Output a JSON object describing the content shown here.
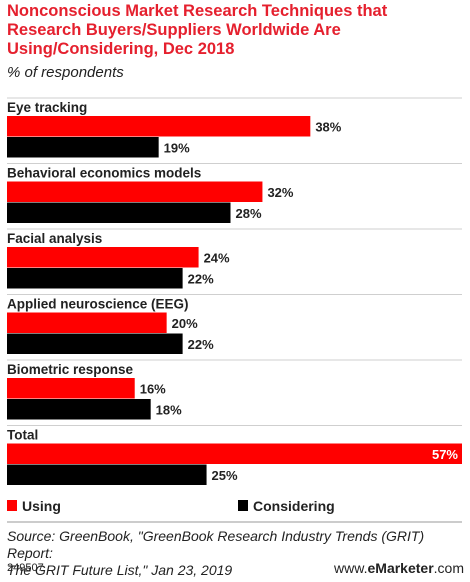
{
  "chart_data": {
    "type": "bar",
    "orientation": "horizontal",
    "title": "Nonconscious Market Research Techniques that Research Buyers/Suppliers Worldwide Are Using/Considering, Dec 2018",
    "subtitle": "% of respondents",
    "categories": [
      "Eye tracking",
      "Behavioral economics models",
      "Facial analysis",
      "Applied neuroscience (EEG)",
      "Biometric response",
      "Total"
    ],
    "series": [
      {
        "name": "Using",
        "color": "#ff0000",
        "values": [
          38,
          32,
          24,
          20,
          16,
          57
        ]
      },
      {
        "name": "Considering",
        "color": "#000000",
        "values": [
          19,
          28,
          22,
          22,
          18,
          25
        ]
      }
    ],
    "value_suffix": "%",
    "xlim": [
      0,
      57
    ],
    "grid": false,
    "legend_position": "bottom-left"
  },
  "source_lines": [
    "Source: GreenBook, \"GreenBook Research Industry Trends (GRIT) Report:",
    "The GRIT Future List,\" Jan 23, 2019"
  ],
  "footer": {
    "chart_id": "249507",
    "brand_prefix": "www.",
    "brand_name": "eMarketer",
    "brand_suffix": ".com"
  }
}
